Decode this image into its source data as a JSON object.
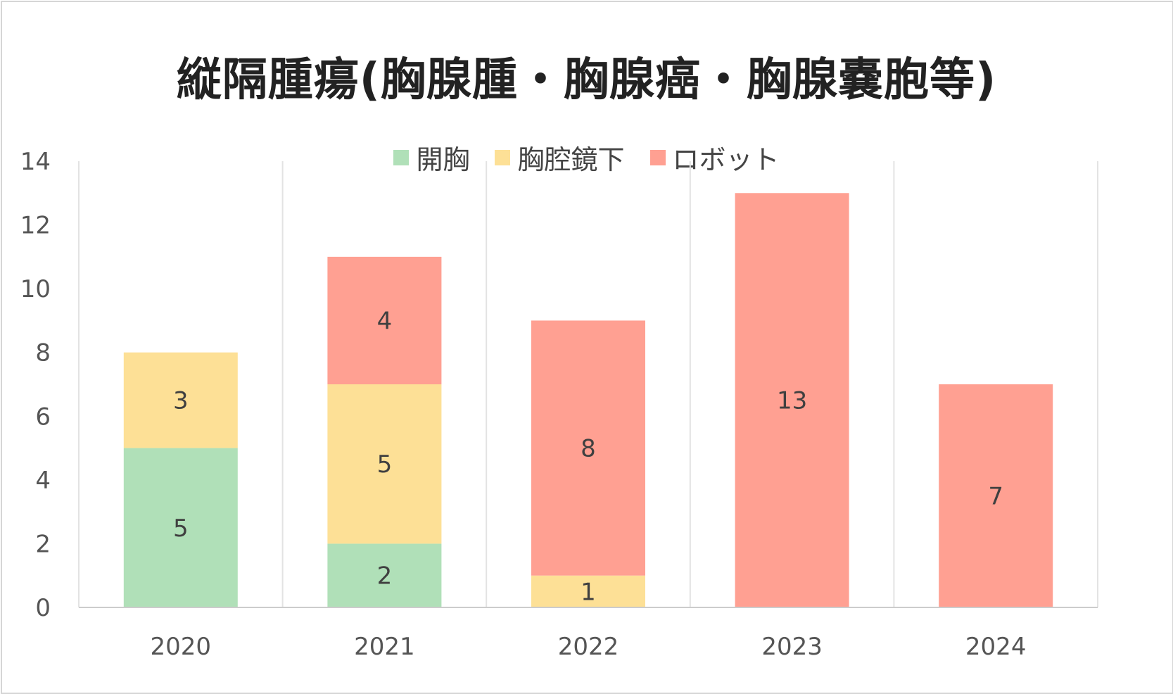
{
  "chart_data": {
    "type": "bar",
    "stacked": true,
    "title": "縦隔腫瘍(胸腺腫・胸腺癌・胸腺嚢胞等)",
    "categories": [
      "2020",
      "2021",
      "2022",
      "2023",
      "2024"
    ],
    "series": [
      {
        "name": "開胸",
        "color": "#b0e0b8",
        "values": [
          5,
          2,
          0,
          0,
          0
        ]
      },
      {
        "name": "胸腔鏡下",
        "color": "#fde096",
        "values": [
          3,
          5,
          1,
          0,
          0
        ]
      },
      {
        "name": "ロボット",
        "color": "#ffa092",
        "values": [
          0,
          4,
          8,
          13,
          7
        ]
      }
    ],
    "ylim": [
      0,
      14
    ],
    "yticks": [
      "0",
      "2",
      "4",
      "6",
      "8",
      "10",
      "12",
      "14"
    ],
    "xlabel": "",
    "ylabel": "",
    "grid": "vertical category separators",
    "legend_position": "top"
  }
}
